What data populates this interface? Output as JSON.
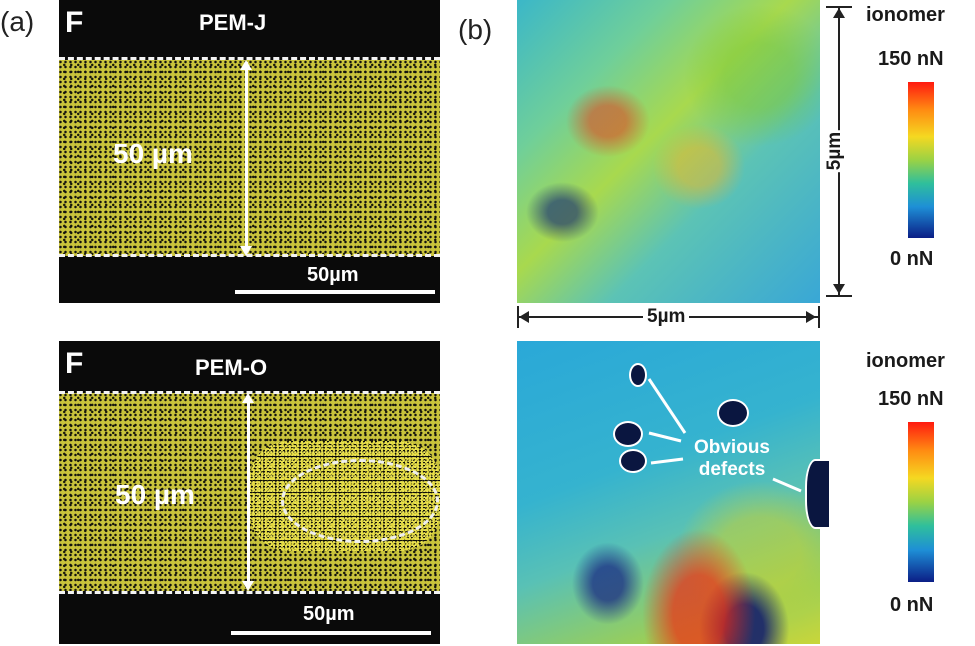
{
  "panel_a": {
    "label": "(a)",
    "top_map": {
      "element": "F",
      "sample": "PEM-J",
      "thickness": "50 µm",
      "scale_bar": "50µm"
    },
    "bottom_map": {
      "element": "F",
      "sample": "PEM-O",
      "thickness": "50 µm",
      "scale_bar": "50µm"
    }
  },
  "panel_b": {
    "label": "(b)",
    "top_map": {
      "dimension_x": "5µm",
      "dimension_y": "5µm",
      "colorbar_title": "ionomer",
      "colorbar_max": "150 nN",
      "colorbar_min": "0 nN"
    },
    "bottom_map": {
      "annotation": "Obvious defects",
      "colorbar_title": "ionomer",
      "colorbar_max": "150 nN",
      "colorbar_min": "0 nN"
    }
  },
  "colors": {
    "fluorine_map": "#d8d040",
    "background_map": "#0a0a0a",
    "colorbar_high": "#ff1a10",
    "colorbar_low": "#0b1e86"
  }
}
